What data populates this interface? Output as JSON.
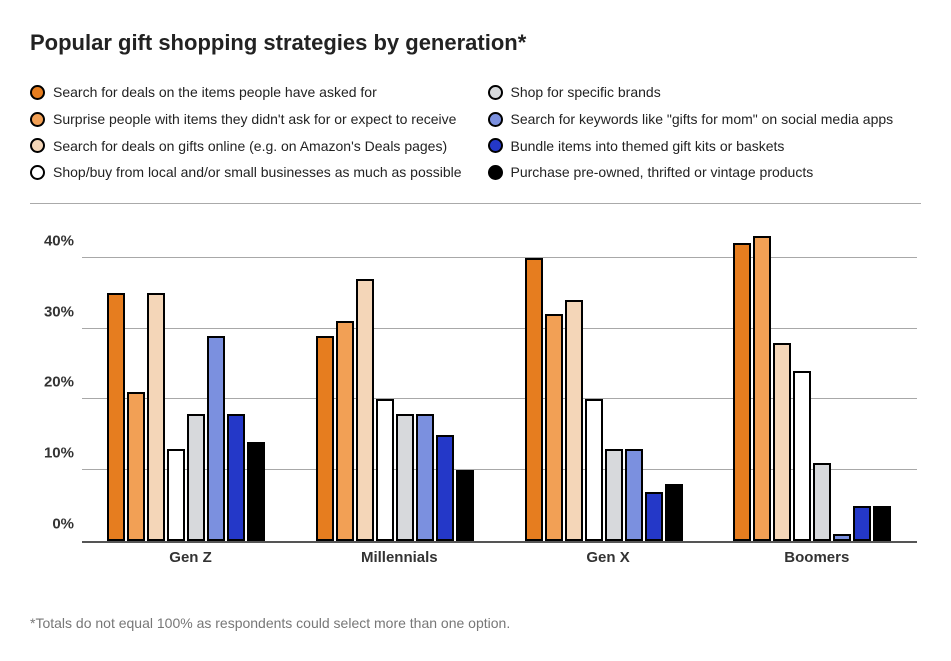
{
  "title": "Popular gift shopping strategies by generation*",
  "footnote": "*Totals do not equal 100% as respondents could select more than one option.",
  "chart": {
    "type": "bar",
    "ymax": 45,
    "yticks": [
      0,
      10,
      20,
      30,
      40
    ],
    "grid_color": "#a8a8a8",
    "background_color": "#ffffff",
    "bar_border_color": "#000000",
    "categories": [
      "Gen Z",
      "Millennials",
      "Gen X",
      "Boomers"
    ],
    "group_positions_pct": [
      3,
      28,
      53,
      78
    ],
    "group_width_pct": 20,
    "series": [
      {
        "label": "Search for deals on the items people have asked for",
        "fill": "#e67d1f",
        "border": "#000000"
      },
      {
        "label": "Surprise people with items they didn't ask for or expect to receive",
        "fill": "#f2a055",
        "border": "#000000"
      },
      {
        "label": "Search for deals on gifts online (e.g. on Amazon's Deals pages)",
        "fill": "#f4d6b8",
        "border": "#000000"
      },
      {
        "label": "Shop/buy from local and/or small businesses as much as possible",
        "fill": "#ffffff",
        "border": "#000000"
      },
      {
        "label": "Shop for specific brands",
        "fill": "#d7d9dc",
        "border": "#000000"
      },
      {
        "label": "Search for keywords like \"gifts for mom\" on social media apps",
        "fill": "#7b90df",
        "border": "#000000"
      },
      {
        "label": "Bundle items into themed gift kits or baskets",
        "fill": "#2438c8",
        "border": "#000000"
      },
      {
        "label": "Purchase pre-owned, thrifted or vintage products",
        "fill": "#000000",
        "border": "#000000"
      }
    ],
    "values": [
      [
        35,
        21,
        35,
        13,
        18,
        29,
        18,
        14
      ],
      [
        29,
        31,
        37,
        20,
        18,
        18,
        15,
        10
      ],
      [
        40,
        32,
        34,
        20,
        13,
        13,
        7,
        8
      ],
      [
        42,
        43,
        28,
        24,
        11,
        1,
        5,
        5
      ]
    ]
  }
}
